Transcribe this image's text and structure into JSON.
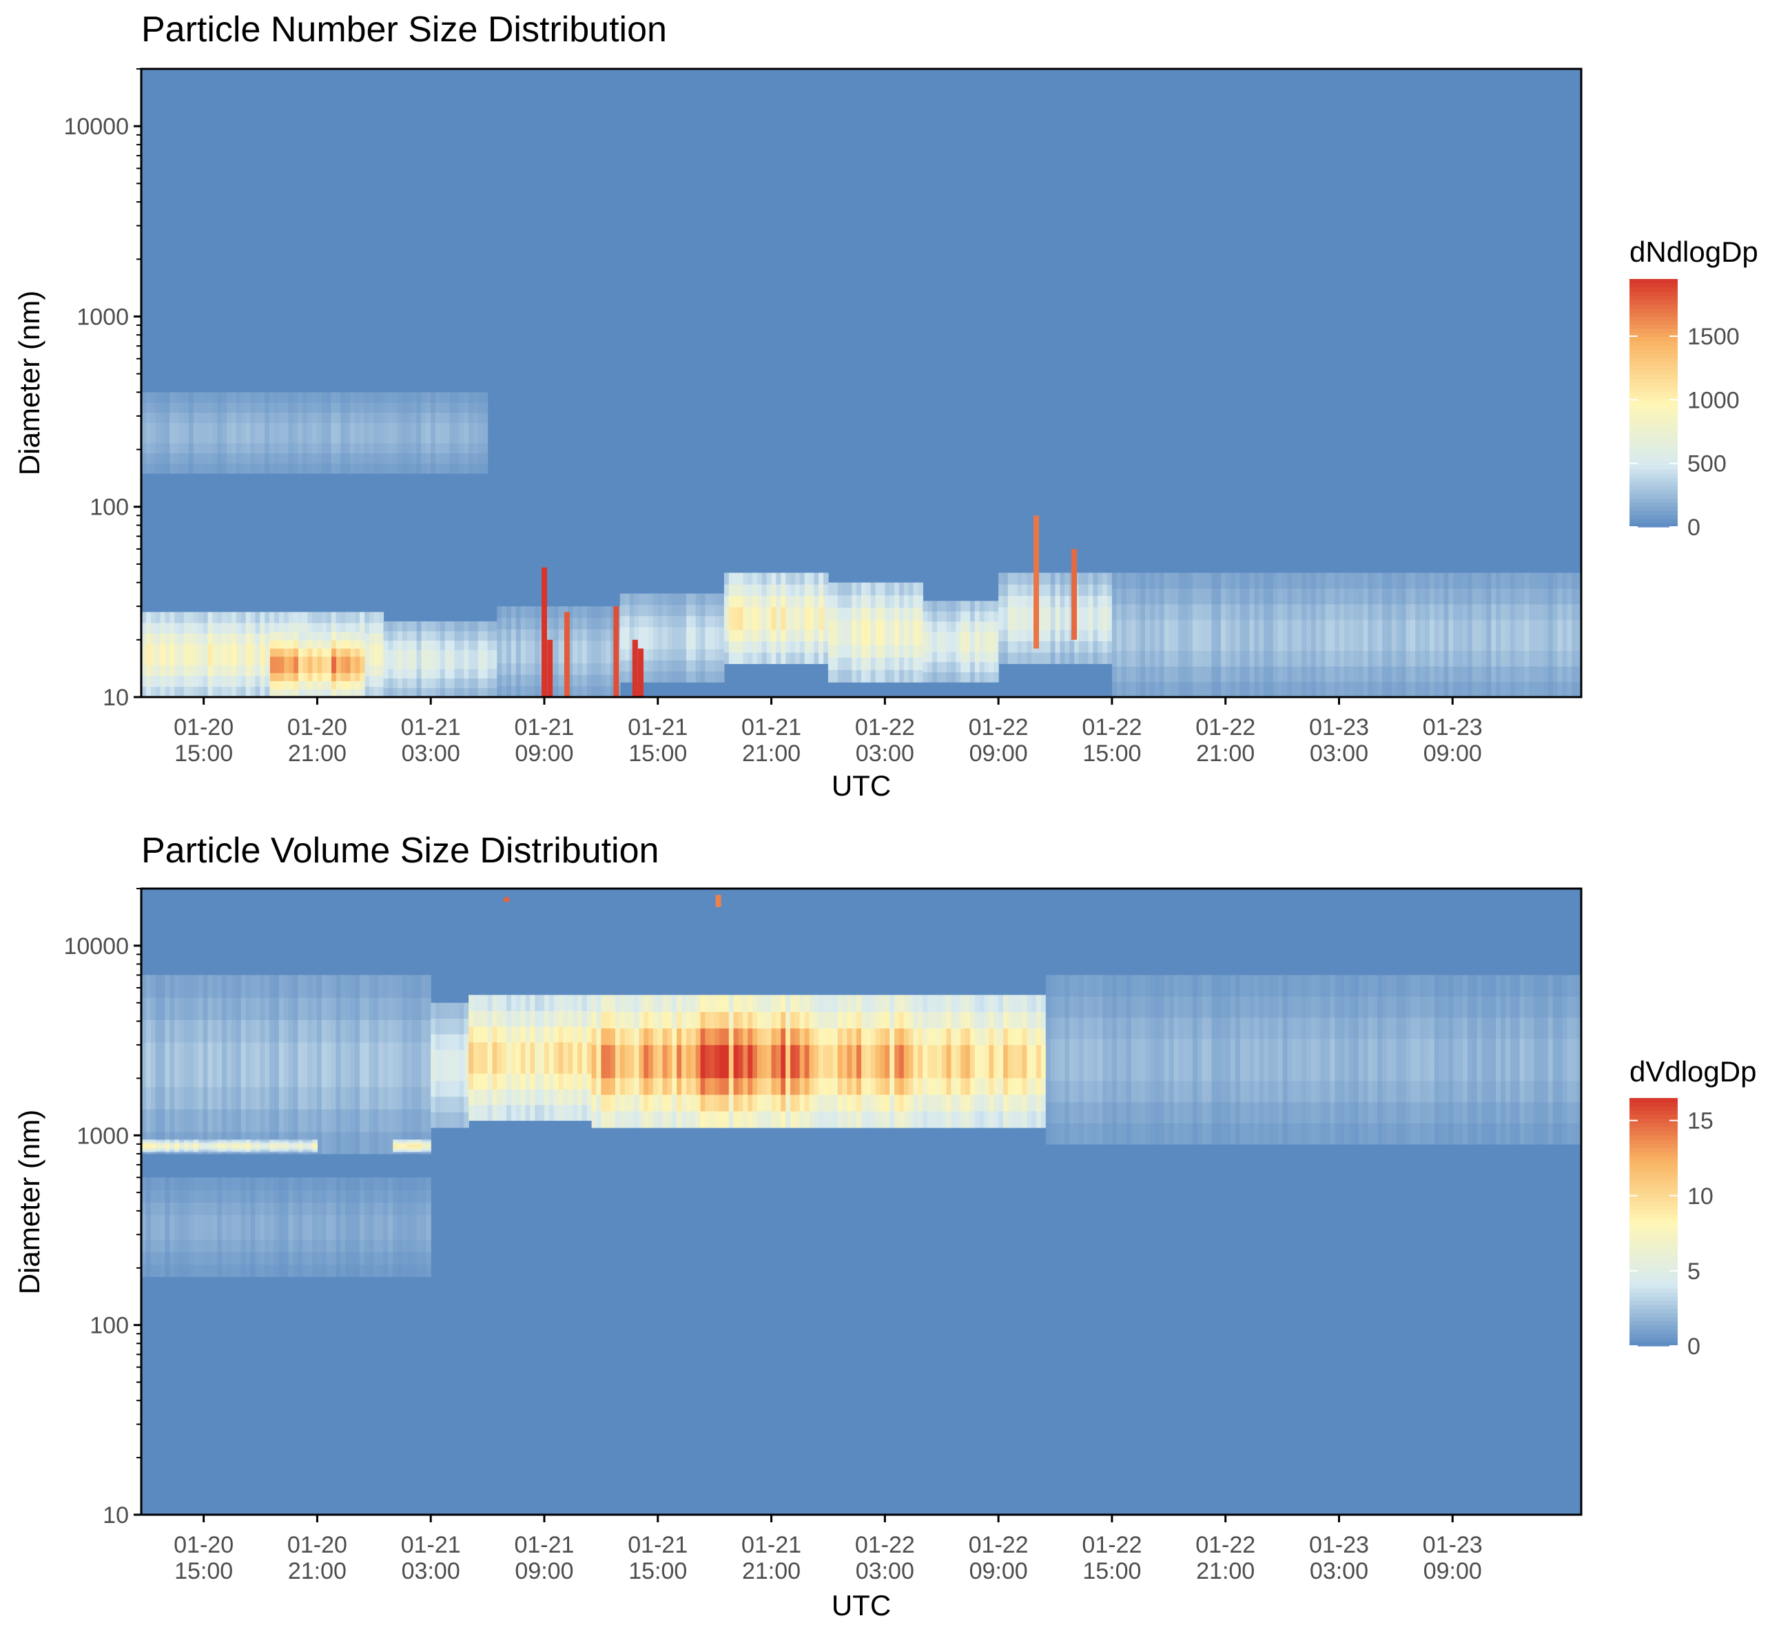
{
  "colors": {
    "low": "#5B8AC1",
    "mid_low": "#D7EAF1",
    "mid": "#FFF6B5",
    "mid_high": "#F9B363",
    "high": "#D7352A",
    "axis": "#000000",
    "tick_label": "#4D4D4D"
  },
  "chart_data": [
    {
      "type": "heatmap",
      "title": "Particle Number Size Distribution",
      "xlabel": "UTC",
      "ylabel": "Diameter (nm)",
      "y_scale": "log",
      "ylim": [
        10,
        20000
      ],
      "xlim_hours": [
        -3.3,
        72.8
      ],
      "x_ticks": [
        {
          "hours": 0,
          "date": "01-20",
          "time": "15:00"
        },
        {
          "hours": 6,
          "date": "01-20",
          "time": "21:00"
        },
        {
          "hours": 12,
          "date": "01-21",
          "time": "03:00"
        },
        {
          "hours": 18,
          "date": "01-21",
          "time": "09:00"
        },
        {
          "hours": 24,
          "date": "01-21",
          "time": "15:00"
        },
        {
          "hours": 30,
          "date": "01-21",
          "time": "21:00"
        },
        {
          "hours": 36,
          "date": "01-22",
          "time": "03:00"
        },
        {
          "hours": 42,
          "date": "01-22",
          "time": "09:00"
        },
        {
          "hours": 48,
          "date": "01-22",
          "time": "15:00"
        },
        {
          "hours": 54,
          "date": "01-22",
          "time": "21:00"
        },
        {
          "hours": 60,
          "date": "01-23",
          "time": "03:00"
        },
        {
          "hours": 66,
          "date": "01-23",
          "time": "09:00"
        }
      ],
      "y_ticks": [
        {
          "value": 10,
          "label": "10"
        },
        {
          "value": 100,
          "label": "100"
        },
        {
          "value": 1000,
          "label": "1000"
        },
        {
          "value": 10000,
          "label": "10000"
        }
      ],
      "legend": {
        "title": "dNdlogDp",
        "range": [
          0,
          1950
        ],
        "breaks": [
          {
            "value": 0,
            "label": "0"
          },
          {
            "value": 500,
            "label": "500"
          },
          {
            "value": 1000,
            "label": "1000"
          },
          {
            "value": 1500,
            "label": "1500"
          }
        ],
        "placement": "right"
      },
      "features": [
        {
          "kind": "band",
          "t0": -3.3,
          "t1": 9.5,
          "d0": 10,
          "d1": 28,
          "value": 900
        },
        {
          "kind": "band",
          "t0": 3.5,
          "t1": 8.5,
          "d0": 10,
          "d1": 22,
          "value": 1450
        },
        {
          "kind": "band",
          "t0": 9.5,
          "t1": 15.5,
          "d0": 10,
          "d1": 25,
          "value": 560
        },
        {
          "kind": "band",
          "t0": 15.5,
          "t1": 22,
          "d0": 10,
          "d1": 30,
          "value": 330
        },
        {
          "kind": "band",
          "t0": 22,
          "t1": 27.5,
          "d0": 12,
          "d1": 35,
          "value": 450
        },
        {
          "kind": "band",
          "t0": 27.5,
          "t1": 33,
          "d0": 15,
          "d1": 45,
          "value": 920
        },
        {
          "kind": "band",
          "t0": 33,
          "t1": 38,
          "d0": 12,
          "d1": 40,
          "value": 820
        },
        {
          "kind": "band",
          "t0": 38,
          "t1": 42,
          "d0": 12,
          "d1": 32,
          "value": 650
        },
        {
          "kind": "band",
          "t0": 42,
          "t1": 48,
          "d0": 15,
          "d1": 45,
          "value": 560
        },
        {
          "kind": "band",
          "t0": 48,
          "t1": 72.8,
          "d0": 10,
          "d1": 45,
          "value": 300
        },
        {
          "kind": "band",
          "t0": -3.3,
          "t1": 15,
          "d0": 150,
          "d1": 400,
          "value": 230
        },
        {
          "kind": "spike",
          "t": 18.0,
          "d0": 10,
          "d1": 48,
          "value": 1950
        },
        {
          "kind": "spike",
          "t": 18.3,
          "d0": 10,
          "d1": 20,
          "value": 1950
        },
        {
          "kind": "spike",
          "t": 19.2,
          "d0": 10,
          "d1": 28,
          "value": 1800
        },
        {
          "kind": "spike",
          "t": 21.8,
          "d0": 10,
          "d1": 30,
          "value": 1850
        },
        {
          "kind": "spike",
          "t": 22.8,
          "d0": 10,
          "d1": 20,
          "value": 1950
        },
        {
          "kind": "spike",
          "t": 23.1,
          "d0": 10,
          "d1": 18,
          "value": 1950
        },
        {
          "kind": "spike",
          "t": 44.0,
          "d0": 18,
          "d1": 90,
          "value": 1700
        },
        {
          "kind": "spike",
          "t": 46.0,
          "d0": 20,
          "d1": 60,
          "value": 1750
        }
      ]
    },
    {
      "type": "heatmap",
      "title": "Particle Volume Size Distribution",
      "xlabel": "UTC",
      "ylabel": "Diameter (nm)",
      "y_scale": "log",
      "ylim": [
        10,
        20000
      ],
      "xlim_hours": [
        -3.3,
        72.8
      ],
      "x_ticks": [
        {
          "hours": 0,
          "date": "01-20",
          "time": "15:00"
        },
        {
          "hours": 6,
          "date": "01-20",
          "time": "21:00"
        },
        {
          "hours": 12,
          "date": "01-21",
          "time": "03:00"
        },
        {
          "hours": 18,
          "date": "01-21",
          "time": "09:00"
        },
        {
          "hours": 24,
          "date": "01-21",
          "time": "15:00"
        },
        {
          "hours": 30,
          "date": "01-21",
          "time": "21:00"
        },
        {
          "hours": 36,
          "date": "01-22",
          "time": "03:00"
        },
        {
          "hours": 42,
          "date": "01-22",
          "time": "09:00"
        },
        {
          "hours": 48,
          "date": "01-22",
          "time": "15:00"
        },
        {
          "hours": 54,
          "date": "01-22",
          "time": "21:00"
        },
        {
          "hours": 60,
          "date": "01-23",
          "time": "03:00"
        },
        {
          "hours": 66,
          "date": "01-23",
          "time": "09:00"
        }
      ],
      "y_ticks": [
        {
          "value": 10,
          "label": "10"
        },
        {
          "value": 100,
          "label": "100"
        },
        {
          "value": 1000,
          "label": "1000"
        },
        {
          "value": 10000,
          "label": "10000"
        }
      ],
      "legend": {
        "title": "dVdlogDp",
        "range": [
          0,
          16.5
        ],
        "breaks": [
          {
            "value": 0,
            "label": "0"
          },
          {
            "value": 5,
            "label": "5"
          },
          {
            "value": 10,
            "label": "10"
          },
          {
            "value": 15,
            "label": "15"
          }
        ],
        "placement": "right"
      },
      "features": [
        {
          "kind": "band",
          "t0": -3.3,
          "t1": 12,
          "d0": 800,
          "d1": 7000,
          "value": 2.5
        },
        {
          "kind": "band",
          "t0": -3.3,
          "t1": 12,
          "d0": 180,
          "d1": 600,
          "value": 1.5
        },
        {
          "kind": "band",
          "t0": -3.3,
          "t1": 6,
          "d0": 820,
          "d1": 950,
          "value": 7.0
        },
        {
          "kind": "band",
          "t0": 10,
          "t1": 12,
          "d0": 820,
          "d1": 950,
          "value": 8.0
        },
        {
          "kind": "band",
          "t0": 12,
          "t1": 14,
          "d0": 1100,
          "d1": 5000,
          "value": 5.0
        },
        {
          "kind": "band",
          "t0": 14,
          "t1": 20.5,
          "d0": 1200,
          "d1": 5500,
          "value": 9.5
        },
        {
          "kind": "band",
          "t0": 20.5,
          "t1": 26,
          "d0": 1100,
          "d1": 5500,
          "value": 12.0
        },
        {
          "kind": "band",
          "t0": 26,
          "t1": 31.5,
          "d0": 1100,
          "d1": 5500,
          "value": 14.5
        },
        {
          "kind": "band",
          "t0": 31.5,
          "t1": 37.5,
          "d0": 1100,
          "d1": 5500,
          "value": 12.0
        },
        {
          "kind": "band",
          "t0": 37.5,
          "t1": 44.5,
          "d0": 1100,
          "d1": 5500,
          "value": 10.0
        },
        {
          "kind": "band",
          "t0": 44.5,
          "t1": 72.8,
          "d0": 900,
          "d1": 7000,
          "value": 2.0
        },
        {
          "kind": "spike",
          "t": 16.0,
          "d0": 17000,
          "d1": 18000,
          "value": 15.0
        },
        {
          "kind": "spike",
          "t": 27.2,
          "d0": 16000,
          "d1": 18500,
          "value": 14.0
        }
      ]
    }
  ]
}
